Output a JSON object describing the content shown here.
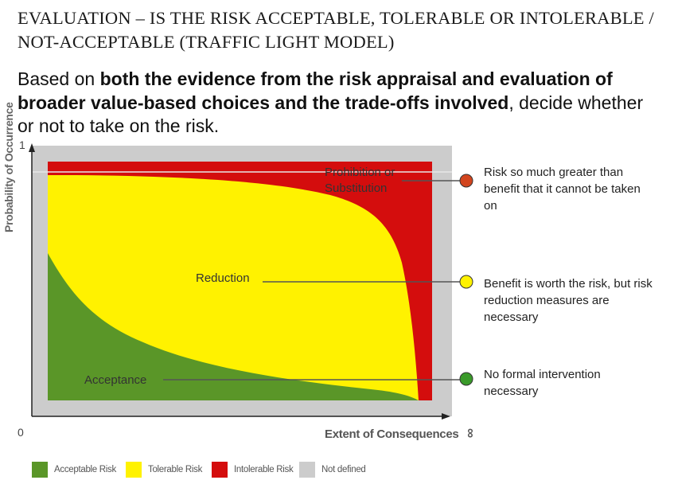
{
  "title": "EVALUATION – IS THE RISK ACCEPTABLE, TOLERABLE OR INTOLERABLE / NOT-ACCEPTABLE (TRAFFIC LIGHT MODEL)",
  "subtitle": {
    "before": "Based on ",
    "bold": "both the evidence from the risk appraisal and evaluation of broader value-based choices and the trade-offs involved",
    "after": ", decide whether or not to take on the risk."
  },
  "axes": {
    "y_label": "Probability of Occurrence",
    "x_label": "Extent of Consequences",
    "y_max_tick": "1",
    "origin_tick": "0",
    "x_max_tick": "∞"
  },
  "zones": {
    "prohibition": "Prohibition or Substitution",
    "reduction": "Reduction",
    "acceptance": "Acceptance"
  },
  "descriptions": {
    "red": "Risk so much greater than benefit that it cannot be taken on",
    "yellow": "Benefit is worth the risk, but risk reduction measures are necessary",
    "green": "No formal intervention necessary"
  },
  "legend": [
    {
      "label": "Acceptable Risk",
      "color": "#5a9628"
    },
    {
      "label": "Tolerable Risk",
      "color": "#fff200"
    },
    {
      "label": "Intolerable Risk",
      "color": "#d40d0d"
    },
    {
      "label": "Not defined",
      "color": "#cccccc"
    }
  ],
  "colors": {
    "green": "#5a9628",
    "yellow": "#fff200",
    "red": "#d40d0d",
    "grey": "#cccccc"
  }
}
